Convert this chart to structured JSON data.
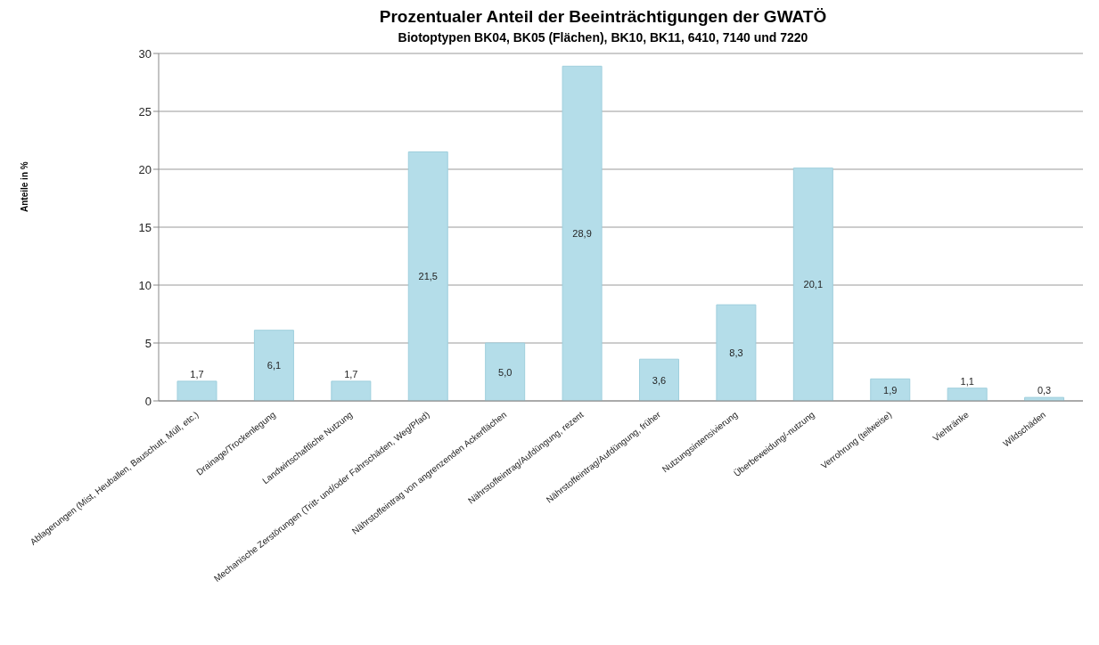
{
  "chart_data": {
    "type": "bar",
    "title": "Prozentualer Anteil der Beeinträchtigungen der GWATÖ",
    "subtitle": "Biotoptypen BK04, BK05 (Flächen), BK10, BK11, 6410, 7140 und 7220",
    "ylabel": "Anteile in %",
    "categories": [
      "Ablagerungen (Mist, Heuballen, Bauschutt, Müll, etc.)",
      "Drainage/Trockenlegung",
      "Landwirtschaftliche Nutzung",
      "Mechanische Zerstörungen (Tritt- und/oder Fahrschäden, Weg/Pfad)",
      "Nährstoffeintrag von angrenzenden Ackerflächen",
      "Nährstoffeintrag/Aufdüngung, rezent",
      "Nährstoffeintrag/Aufdüngung, früher",
      "Nutzungsintensivierung",
      "Überbeweidung/-nutzung",
      "Verrohrung (teilweise)",
      "Viehtränke",
      "Wildschäden"
    ],
    "values": [
      1.7,
      6.1,
      1.7,
      21.5,
      5.0,
      28.9,
      3.6,
      8.3,
      20.1,
      1.9,
      1.1,
      0.3
    ],
    "value_labels": [
      "1,7",
      "6,1",
      "1,7",
      "21,5",
      "5,0",
      "28,9",
      "3,6",
      "8,3",
      "20,1",
      "1,9",
      "1,1",
      "0,3"
    ],
    "color": "#b4dde9",
    "ylim": [
      0,
      30
    ],
    "yticks": [
      0,
      5,
      10,
      15,
      20,
      25,
      30
    ],
    "grid": "y"
  }
}
